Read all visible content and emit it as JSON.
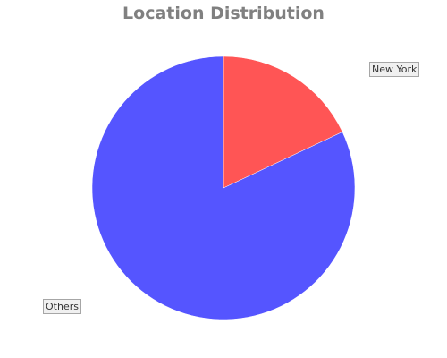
{
  "chart_data": {
    "type": "pie",
    "title": "Location Distribution",
    "slices": [
      {
        "label": "New York",
        "value": 18,
        "color": "#ff5555"
      },
      {
        "label": "Others",
        "value": 82,
        "color": "#5555ff"
      }
    ],
    "start_angle": "12 o'clock",
    "direction": "clockwise",
    "label_style": "boxed labels with leader lines"
  }
}
